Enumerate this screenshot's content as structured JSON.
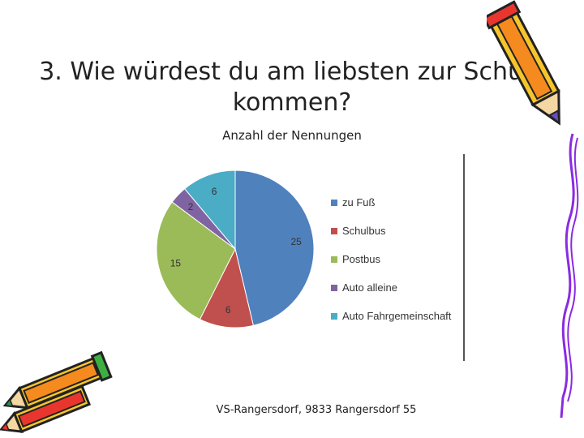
{
  "slide": {
    "title_line1": "3. Wie würdest du am liebsten zur Schule",
    "title_line2": "kommen?",
    "footer": "VS-Rangersdorf, 9833 Rangersdorf 55"
  },
  "chart_data": {
    "type": "pie",
    "title": "Anzahl der Nennungen",
    "categories": [
      "zu Fuß",
      "Schulbus",
      "Postbus",
      "Auto alleine",
      "Auto Fahrgemeinschaft"
    ],
    "values": [
      25,
      6,
      15,
      2,
      6
    ],
    "colors": [
      "#4F81BD",
      "#C0504D",
      "#9BBB59",
      "#8064A2",
      "#4BACC6"
    ],
    "legend_position": "right",
    "data_labels": true
  },
  "decorations": {
    "icons": [
      "pencil-icon",
      "crayon-icon"
    ]
  }
}
